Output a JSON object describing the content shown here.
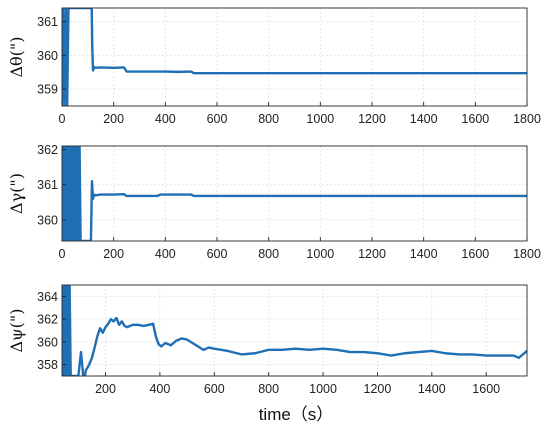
{
  "chart_data": [
    {
      "type": "line",
      "ylabel": "Δθ(\")",
      "xlabel": "",
      "xlim": [
        0,
        1800
      ],
      "ylim": [
        358.5,
        361.4
      ],
      "xticks": [
        0,
        200,
        400,
        600,
        800,
        1000,
        1200,
        1400,
        1600,
        1800
      ],
      "yticks": [
        359,
        360,
        361
      ],
      "grid": true,
      "color": "#1f6fb5",
      "series": [
        {
          "x": [
            0,
            5,
            10,
            15,
            20,
            25,
            115,
            117,
            120,
            122,
            125,
            130,
            150,
            200,
            240,
            250,
            300,
            400,
            450,
            500,
            510,
            600,
            800,
            1000,
            1200,
            1400,
            1600,
            1800
          ],
          "y": [
            358.5,
            361.4,
            358.5,
            361.4,
            358.5,
            361.4,
            361.4,
            360.3,
            359.55,
            359.6,
            359.65,
            359.63,
            359.64,
            359.63,
            359.64,
            359.52,
            359.52,
            359.52,
            359.51,
            359.52,
            359.47,
            359.47,
            359.47,
            359.47,
            359.47,
            359.47,
            359.47,
            359.47
          ]
        }
      ]
    },
    {
      "type": "line",
      "ylabel": "Δγ(\")",
      "xlabel": "",
      "xlim": [
        0,
        1800
      ],
      "ylim": [
        359.4,
        362.1
      ],
      "xticks": [
        0,
        200,
        400,
        600,
        800,
        1000,
        1200,
        1400,
        1600,
        1800
      ],
      "yticks": [
        360,
        361,
        362
      ],
      "grid": true,
      "color": "#1f6fb5",
      "series": [
        {
          "x": [
            0,
            4,
            8,
            12,
            16,
            20,
            24,
            28,
            32,
            36,
            40,
            44,
            48,
            52,
            56,
            60,
            64,
            68,
            72,
            112,
            116,
            120,
            124,
            130,
            150,
            200,
            240,
            250,
            300,
            370,
            380,
            450,
            500,
            510,
            600,
            800,
            1000,
            1200,
            1400,
            1600,
            1800
          ],
          "y": [
            359.4,
            362.1,
            359.4,
            362.1,
            359.4,
            362.1,
            359.4,
            362.1,
            359.4,
            362.1,
            359.4,
            362.1,
            359.4,
            362.1,
            359.4,
            362.1,
            359.4,
            362.1,
            359.4,
            359.4,
            361.1,
            360.6,
            360.72,
            360.7,
            360.72,
            360.72,
            360.73,
            360.68,
            360.68,
            360.68,
            360.72,
            360.72,
            360.72,
            360.68,
            360.68,
            360.68,
            360.68,
            360.68,
            360.68,
            360.68,
            360.68
          ]
        }
      ]
    },
    {
      "type": "line",
      "ylabel": "Δψ(\")",
      "xlabel": "time（s）",
      "xlim": [
        40,
        1750
      ],
      "ylim": [
        357,
        365
      ],
      "xticks": [
        200,
        400,
        600,
        800,
        1000,
        1200,
        1400,
        1600
      ],
      "yticks": [
        358,
        360,
        362,
        364
      ],
      "grid": true,
      "color": "#1f6fb5",
      "series": [
        {
          "x": [
            40,
            44,
            48,
            52,
            56,
            60,
            64,
            68,
            72,
            100,
            110,
            118,
            124,
            128,
            140,
            150,
            160,
            170,
            180,
            190,
            200,
            210,
            220,
            230,
            240,
            250,
            260,
            270,
            280,
            300,
            320,
            340,
            360,
            375,
            385,
            395,
            405,
            420,
            440,
            460,
            480,
            500,
            520,
            540,
            560,
            580,
            600,
            650,
            700,
            750,
            800,
            850,
            900,
            950,
            1000,
            1050,
            1100,
            1150,
            1200,
            1250,
            1300,
            1350,
            1400,
            1450,
            1500,
            1550,
            1600,
            1650,
            1700,
            1720,
            1750
          ],
          "y": [
            357,
            365,
            357,
            365,
            357,
            365,
            357,
            365,
            357,
            357,
            359.1,
            357,
            357,
            357.5,
            358,
            358.6,
            359.5,
            360.5,
            361.2,
            360.8,
            361.3,
            361.6,
            362,
            361.8,
            362.1,
            361.5,
            361.8,
            361.4,
            361.3,
            361.5,
            361.5,
            361.4,
            361.5,
            361.6,
            360.5,
            359.8,
            359.6,
            359.9,
            359.7,
            360.1,
            360.3,
            360.2,
            359.9,
            359.6,
            359.3,
            359.5,
            359.4,
            359.2,
            358.9,
            359.0,
            359.3,
            359.3,
            359.4,
            359.3,
            359.4,
            359.3,
            359.1,
            359.1,
            359.0,
            358.8,
            359.0,
            359.1,
            359.2,
            359.0,
            358.9,
            358.9,
            358.8,
            358.8,
            358.8,
            358.6,
            359.2
          ]
        }
      ]
    }
  ]
}
